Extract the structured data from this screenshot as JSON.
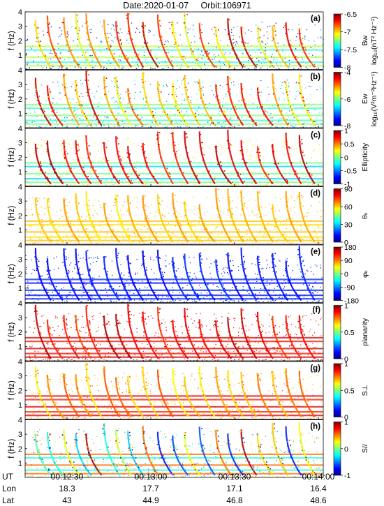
{
  "header": {
    "date_label": "Date:2020-01-07",
    "orbit_label": "Orbit:106971"
  },
  "chart_data": {
    "type": "heatmap",
    "shared_x": {
      "row_labels": [
        "UT",
        "Lon",
        "Lat"
      ],
      "ticks": [
        {
          "ut": "00:12:30",
          "lon": "18.3",
          "lat": "43"
        },
        {
          "ut": "00:13:00",
          "lon": "17.7",
          "lat": "44.9"
        },
        {
          "ut": "00:13:30",
          "lon": "17.1",
          "lat": "46.8"
        },
        {
          "ut": "00:14:00",
          "lon": "16.4",
          "lat": "48.6"
        }
      ]
    },
    "y_axis": {
      "ylabel": "f (Hz)",
      "ylim": [
        0,
        4
      ],
      "ticks": [
        "1",
        "2",
        "3",
        "4"
      ]
    },
    "panels": [
      {
        "tag": "(a)",
        "cbar_label": [
          "Bw",
          "log₁₀(nT² Hz⁻¹)"
        ],
        "cbar_ticks": [
          "-6.5",
          "-7",
          "-7.5",
          "-8"
        ],
        "colormap": "jet",
        "style": "whistler"
      },
      {
        "tag": "(b)",
        "cbar_label": [
          "Ew",
          "log₁₀(V²m⁻²Hz⁻¹)"
        ],
        "cbar_ticks": [
          "-4",
          "-6",
          "-8"
        ],
        "colormap": "jet",
        "style": "ew"
      },
      {
        "tag": "(c)",
        "cbar_label": [
          "Ellipticity"
        ],
        "cbar_ticks": [
          "1",
          "0.5",
          "0",
          "-0.5",
          "-1"
        ],
        "colormap": "jet",
        "style": "ellip"
      },
      {
        "tag": "(d)",
        "cbar_label": [
          "θₖ"
        ],
        "cbar_ticks": [
          "90",
          "60",
          "30",
          "0"
        ],
        "colormap": "jet",
        "style": "theta"
      },
      {
        "tag": "(e)",
        "cbar_label": [
          "φₖ"
        ],
        "cbar_ticks": [
          "180",
          "90",
          "0",
          "-90",
          "-180"
        ],
        "colormap": "jet",
        "style": "phi"
      },
      {
        "tag": "(f)",
        "cbar_label": [
          "planarity"
        ],
        "cbar_ticks": [
          "1",
          "0.5",
          "0"
        ],
        "colormap": "jet",
        "style": "planar"
      },
      {
        "tag": "(g)",
        "cbar_label": [
          "S⊥"
        ],
        "cbar_ticks": [
          "1",
          "0.5",
          "0"
        ],
        "colormap": "jet",
        "style": "sperp"
      },
      {
        "tag": "(h)",
        "cbar_label": [
          "S//"
        ],
        "cbar_ticks": [
          "1",
          "0",
          "-1"
        ],
        "colormap": "jet",
        "style": "spar"
      }
    ],
    "whistler_positions": [
      0.035,
      0.075,
      0.13,
      0.17,
      0.205,
      0.265,
      0.305,
      0.345,
      0.395,
      0.445,
      0.495,
      0.535,
      0.585,
      0.64,
      0.68,
      0.725,
      0.78,
      0.83,
      0.875,
      0.92
    ],
    "grid": false,
    "legend": "none"
  }
}
